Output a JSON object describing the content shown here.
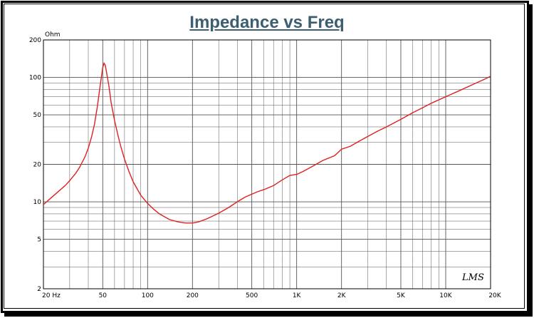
{
  "chart_data": {
    "type": "line",
    "title": "Impedance vs Freq",
    "ylabel": "Ohm",
    "xscale": "log",
    "yscale": "log",
    "xlim": [
      20,
      20000
    ],
    "ylim": [
      2,
      200
    ],
    "grid": true,
    "x_tick_labels": [
      {
        "value": 20,
        "label": "20  Hz"
      },
      {
        "value": 50,
        "label": "50"
      },
      {
        "value": 100,
        "label": "100"
      },
      {
        "value": 200,
        "label": "200"
      },
      {
        "value": 500,
        "label": "500"
      },
      {
        "value": 1000,
        "label": "1K"
      },
      {
        "value": 2000,
        "label": "2K"
      },
      {
        "value": 5000,
        "label": "5K"
      },
      {
        "value": 10000,
        "label": "10K"
      },
      {
        "value": 20000,
        "label": "20K"
      }
    ],
    "y_tick_labels": [
      {
        "value": 200,
        "label": "200"
      },
      {
        "value": 100,
        "label": "100"
      },
      {
        "value": 50,
        "label": "50"
      },
      {
        "value": 20,
        "label": "20"
      },
      {
        "value": 10,
        "label": "10"
      },
      {
        "value": 5,
        "label": "5"
      },
      {
        "value": 2,
        "label": "2"
      }
    ],
    "series": [
      {
        "color": "#e02020",
        "x": [
          20,
          22,
          25,
          28,
          30,
          33,
          35,
          38,
          40,
          42,
          44,
          46,
          48,
          50,
          51,
          52,
          53,
          55,
          57,
          60,
          63,
          66,
          70,
          75,
          80,
          90,
          100,
          110,
          120,
          140,
          160,
          180,
          200,
          220,
          250,
          300,
          350,
          400,
          450,
          500,
          550,
          600,
          700,
          800,
          900,
          1000,
          1100,
          1300,
          1500,
          1800,
          2000,
          2300,
          2600,
          3000,
          3500,
          4000,
          5000,
          6000,
          7000,
          8000,
          10000,
          12000,
          15000,
          18000,
          20000
        ],
        "y": [
          9.5,
          10.5,
          12,
          13.5,
          14.8,
          17,
          19,
          23,
          27,
          33,
          42,
          58,
          85,
          120,
          130,
          125,
          110,
          85,
          62,
          45,
          35,
          28,
          22,
          17.5,
          14.5,
          11.3,
          9.7,
          8.7,
          8.0,
          7.2,
          6.9,
          6.75,
          6.75,
          6.9,
          7.3,
          8.1,
          9.0,
          10.0,
          10.9,
          11.5,
          12.1,
          12.5,
          13.5,
          15.0,
          16.3,
          16.6,
          17.5,
          19.5,
          21.5,
          23.5,
          26.5,
          28,
          30.5,
          33.5,
          37,
          40,
          46,
          52,
          57,
          62,
          70,
          77,
          87,
          96,
          102
        ]
      }
    ]
  },
  "annotation": {
    "signature": "LMS"
  }
}
